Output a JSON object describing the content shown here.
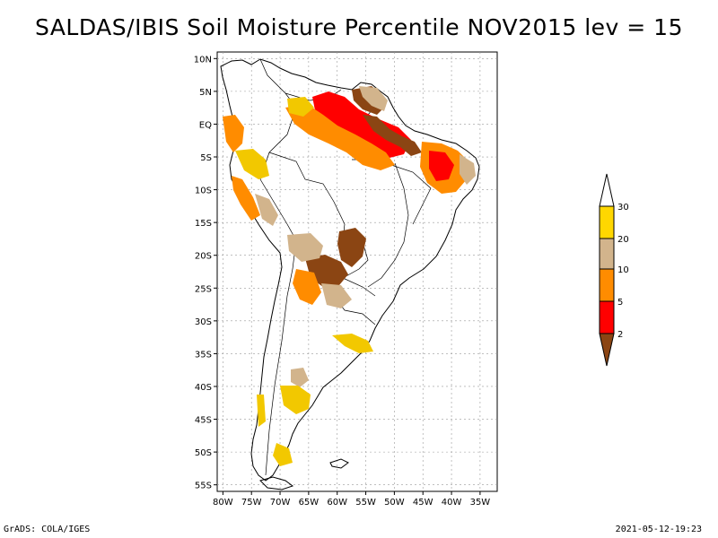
{
  "title": "SALDAS/IBIS Soil Moisture Percentile NOV2015 lev = 15",
  "footer": {
    "left": "GrADS: COLA/IGES",
    "right": "2021-05-12-19:23"
  },
  "map": {
    "lat_labels": [
      "10N",
      "5N",
      "EQ",
      "5S",
      "10S",
      "15S",
      "20S",
      "25S",
      "30S",
      "35S",
      "40S",
      "45S",
      "50S",
      "55S"
    ],
    "lat_values": [
      10,
      5,
      0,
      -5,
      -10,
      -15,
      -20,
      -25,
      -30,
      -35,
      -40,
      -45,
      -50,
      -55
    ],
    "lon_labels": [
      "80W",
      "75W",
      "70W",
      "65W",
      "60W",
      "55W",
      "50W",
      "45W",
      "40W",
      "35W"
    ],
    "lon_values": [
      -80,
      -75,
      -70,
      -65,
      -60,
      -55,
      -50,
      -45,
      -40,
      -35
    ],
    "lat_range": [
      -56,
      11
    ],
    "lon_range": [
      -81,
      -32
    ]
  },
  "legend": {
    "labels": [
      "30",
      "20",
      "10",
      "5",
      "2"
    ],
    "colors": [
      "#ffd700",
      "#d2b48c",
      "#ff8c00",
      "#ff0000",
      "#8b4513"
    ]
  },
  "colors": {
    "yellow": "#f2c800",
    "tan": "#d2b48c",
    "orange": "#ff8c00",
    "red": "#ff0000",
    "brown": "#8b4513"
  }
}
